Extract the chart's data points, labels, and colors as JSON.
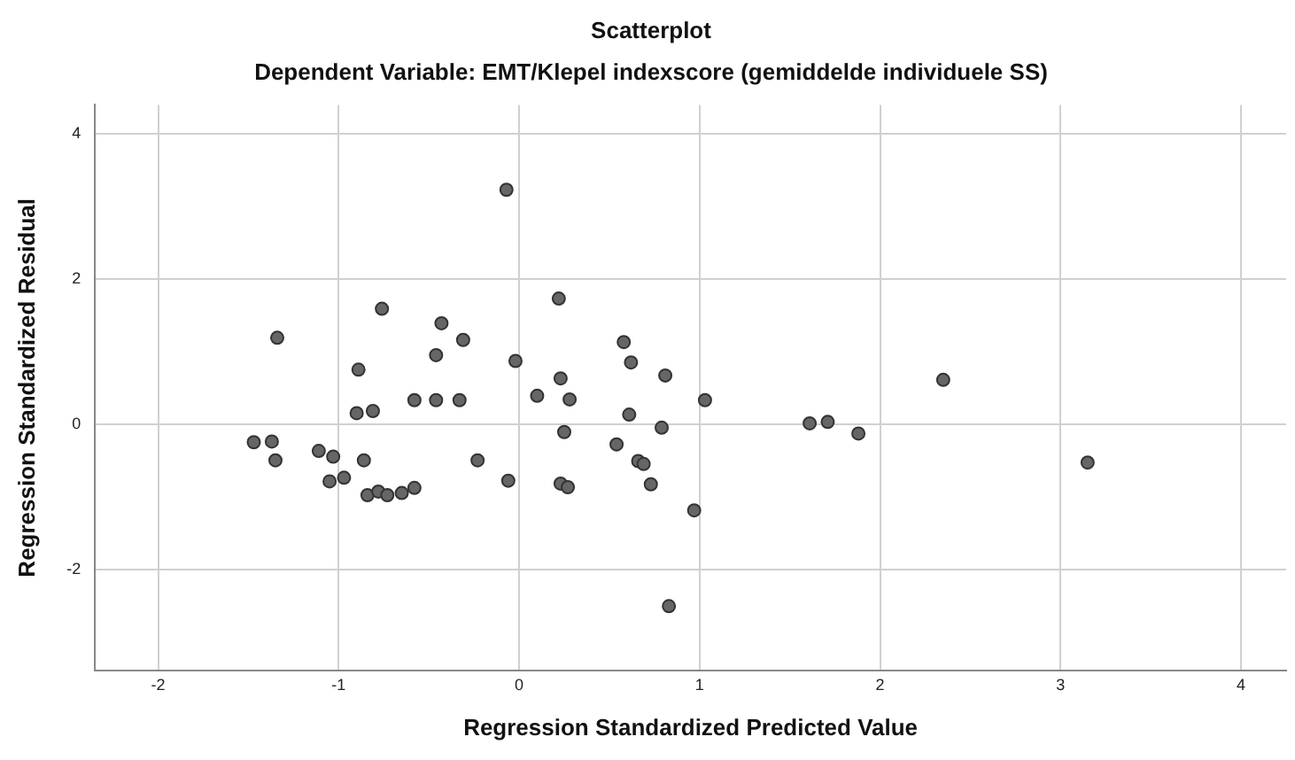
{
  "chart_data": {
    "type": "scatter",
    "title": "Scatterplot",
    "subtitle": "Dependent Variable: EMT/Klepel indexscore (gemiddelde individuele SS)",
    "xlabel": "Regression Standardized Predicted Value",
    "ylabel": "Regression Standardized Residual",
    "x": [
      -1.47,
      -1.37,
      -1.35,
      -1.34,
      -1.11,
      -1.03,
      -1.05,
      -0.97,
      -0.89,
      -0.9,
      -0.81,
      -0.76,
      -0.86,
      -0.84,
      -0.78,
      -0.73,
      -0.65,
      -0.58,
      -0.58,
      -0.46,
      -0.33,
      -0.46,
      -0.43,
      -0.31,
      -0.23,
      -0.07,
      -0.02,
      -0.06,
      0.1,
      0.22,
      0.23,
      0.28,
      0.25,
      0.23,
      0.27,
      0.58,
      0.62,
      0.81,
      1.03,
      0.61,
      0.79,
      0.54,
      0.66,
      0.69,
      0.73,
      0.97,
      0.83,
      1.61,
      1.71,
      1.88,
      2.35,
      3.15
    ],
    "series": [
      {
        "color": "#666666",
        "values": [
          -0.25,
          -0.24,
          -0.5,
          1.19,
          -0.37,
          -0.45,
          -0.79,
          -0.74,
          0.75,
          0.15,
          0.18,
          1.59,
          -0.5,
          -0.98,
          -0.93,
          -0.98,
          -0.95,
          -0.88,
          0.33,
          0.33,
          0.33,
          0.95,
          1.39,
          1.16,
          -0.5,
          3.23,
          0.87,
          -0.78,
          0.39,
          1.73,
          0.63,
          0.34,
          -0.11,
          -0.82,
          -0.87,
          1.13,
          0.85,
          0.67,
          0.33,
          0.13,
          -0.05,
          -0.28,
          -0.51,
          -0.55,
          -0.83,
          -1.19,
          -2.51,
          0.01,
          0.03,
          -0.13,
          0.61,
          -0.53
        ]
      }
    ],
    "xlim": [
      -2.35,
      4.25
    ],
    "ylim": [
      -3.4,
      4.4
    ],
    "xticks": [
      -2,
      -1,
      0,
      1,
      2,
      3,
      4
    ],
    "yticks": [
      -2,
      0,
      2,
      4
    ],
    "grid": true,
    "legend": false,
    "marker": "circle"
  }
}
